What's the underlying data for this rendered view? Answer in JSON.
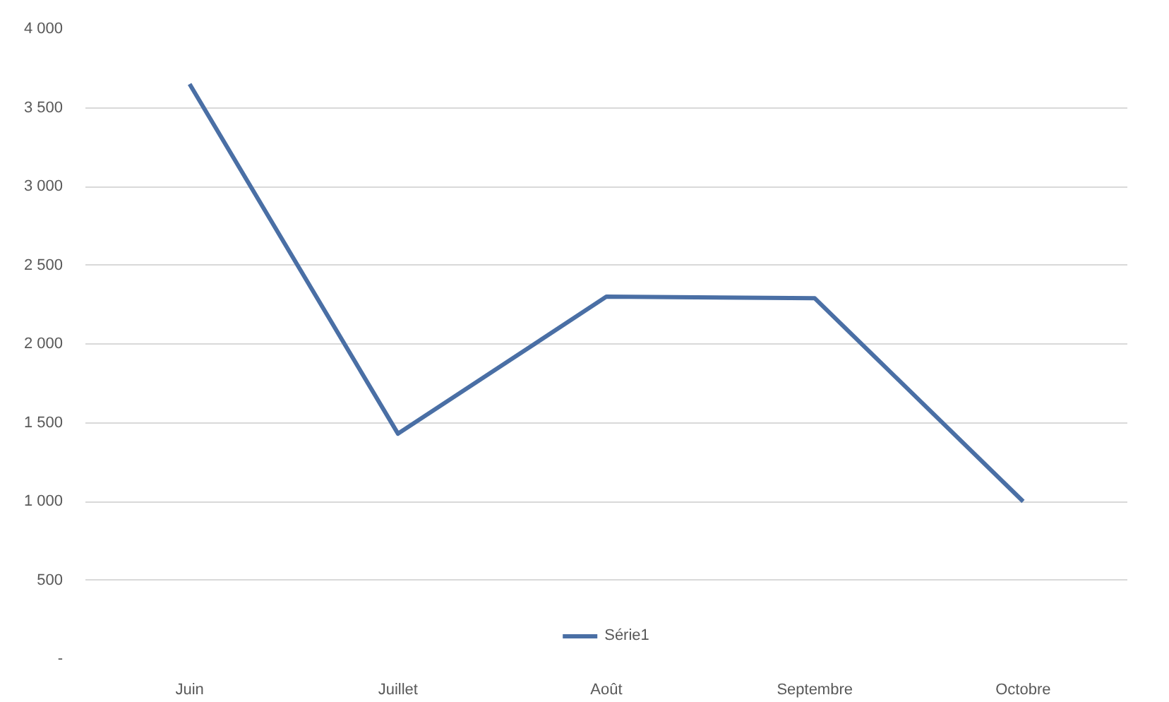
{
  "chart_data": {
    "type": "line",
    "categories": [
      "Juin",
      "Juillet",
      "Août",
      "Septembre",
      "Octobre"
    ],
    "series": [
      {
        "name": "Série1",
        "color": "#4a6fa5",
        "values": [
          3650,
          1430,
          2300,
          2290,
          1000
        ]
      }
    ],
    "ylim": [
      0,
      4000
    ],
    "yticks": [
      {
        "value": 0,
        "label": "-"
      },
      {
        "value": 500,
        "label": "500"
      },
      {
        "value": 1000,
        "label": "1 000"
      },
      {
        "value": 1500,
        "label": "1 500"
      },
      {
        "value": 2000,
        "label": "2 000"
      },
      {
        "value": 2500,
        "label": "2 500"
      },
      {
        "value": 3000,
        "label": "3 000"
      },
      {
        "value": 3500,
        "label": "3 500"
      },
      {
        "value": 4000,
        "label": "4 000"
      }
    ],
    "grid": "y",
    "legend": "bottom",
    "marker": "none",
    "line_style": "solid"
  }
}
